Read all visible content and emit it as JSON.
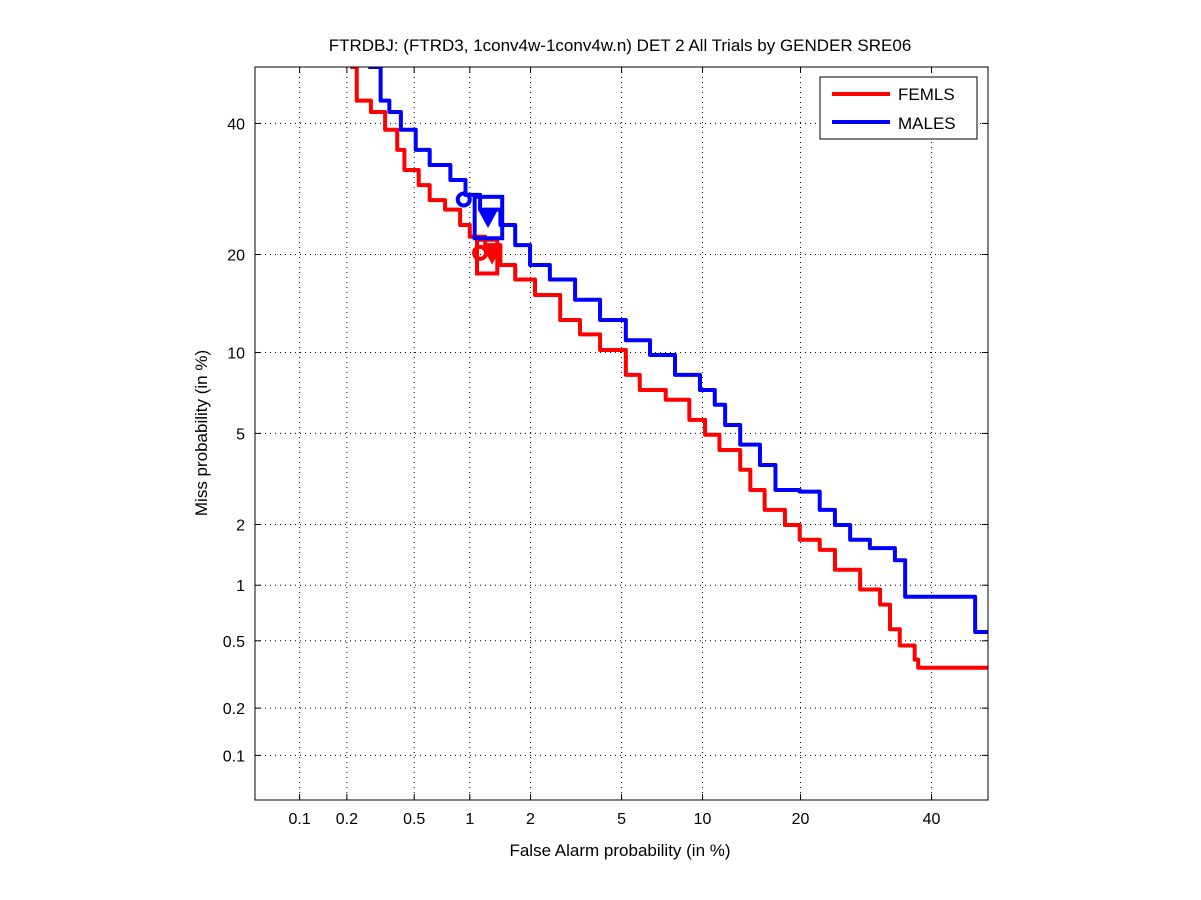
{
  "chart_data": {
    "type": "line",
    "scale": "probit",
    "title": "FTRDBJ: (FTRD3, 1conv4w-1conv4w.n) DET 2 All Trials by GENDER SRE06",
    "xlabel": "False Alarm probability (in %)",
    "ylabel": "Miss probability (in %)",
    "xlim": [
      0.05,
      50
    ],
    "ylim": [
      0.05,
      50
    ],
    "xticks": [
      0.1,
      0.2,
      0.5,
      1,
      2,
      5,
      10,
      20,
      40
    ],
    "xtick_labels": [
      "0.1",
      "0.2",
      "0.5",
      "1",
      "2",
      "5",
      "10",
      "20",
      "40"
    ],
    "yticks": [
      0.1,
      0.2,
      0.5,
      1,
      2,
      5,
      10,
      20,
      40
    ],
    "ytick_labels": [
      "0.1",
      "0.2",
      "0.5",
      "1",
      "2",
      "5",
      "10",
      "20",
      "40"
    ],
    "grid": true,
    "legend_position": "top-right",
    "series": [
      {
        "name": "FEMLS",
        "color": "#ff0000",
        "x": [
          0.21,
          0.23,
          0.28,
          0.34,
          0.4,
          0.44,
          0.53,
          0.61,
          0.74,
          0.89,
          1.0,
          1.2,
          1.43,
          1.69,
          2.1,
          2.74,
          3.35,
          4.08,
          5.2,
          5.9,
          7.4,
          9.0,
          10.2,
          11.4,
          13.3,
          14.3,
          15.8,
          18.1,
          19.9,
          22.5,
          24.6,
          28.3,
          31.4,
          33,
          34.6,
          37.1,
          37.7,
          50
        ],
        "y": [
          50,
          44,
          42,
          38.9,
          35.5,
          32.2,
          29.8,
          27.5,
          26.1,
          23.9,
          22.3,
          21.2,
          18.7,
          17,
          15.3,
          12.8,
          11.5,
          10.2,
          8.35,
          7.35,
          6.76,
          5.66,
          4.94,
          4.28,
          3.53,
          2.88,
          2.34,
          1.99,
          1.69,
          1.51,
          1.2,
          0.95,
          0.79,
          0.58,
          0.47,
          0.39,
          0.35,
          0.35
        ],
        "markers": {
          "circle": [
            1.13,
            20.2
          ],
          "triangle": [
            1.3,
            20.0
          ],
          "box": {
            "x": [
              1.09,
              1.38
            ],
            "y": [
              17.7,
              21.9
            ]
          }
        }
      },
      {
        "name": "MALES",
        "color": "#0000ff",
        "x": [
          0.27,
          0.32,
          0.36,
          0.42,
          0.51,
          0.61,
          0.79,
          0.95,
          1.13,
          1.43,
          1.69,
          1.99,
          2.46,
          3.19,
          4.08,
          5.2,
          6.46,
          8.0,
          9.8,
          11.0,
          11.9,
          13.3,
          15.3,
          17,
          19.9,
          22.5,
          24.6,
          26.8,
          29.8,
          33.8,
          35.5,
          35.5,
          45.3,
          47.7,
          50
        ],
        "y": [
          50,
          44,
          42,
          38.9,
          35.5,
          33,
          30.6,
          28.3,
          26.1,
          23.9,
          21.2,
          18.7,
          17,
          14.8,
          12.8,
          11.0,
          9.8,
          8.35,
          7.35,
          6.47,
          5.4,
          4.5,
          3.7,
          2.88,
          2.83,
          2.34,
          1.99,
          1.69,
          1.54,
          1.34,
          0.95,
          0.87,
          0.87,
          0.56,
          0.56
        ],
        "markers": {
          "circle": [
            0.93,
            27.6
          ],
          "triangle": [
            1.24,
            24.9
          ],
          "box": {
            "x": [
              1.06,
              1.46
            ],
            "y": [
              22.1,
              28.0
            ]
          }
        }
      }
    ]
  }
}
